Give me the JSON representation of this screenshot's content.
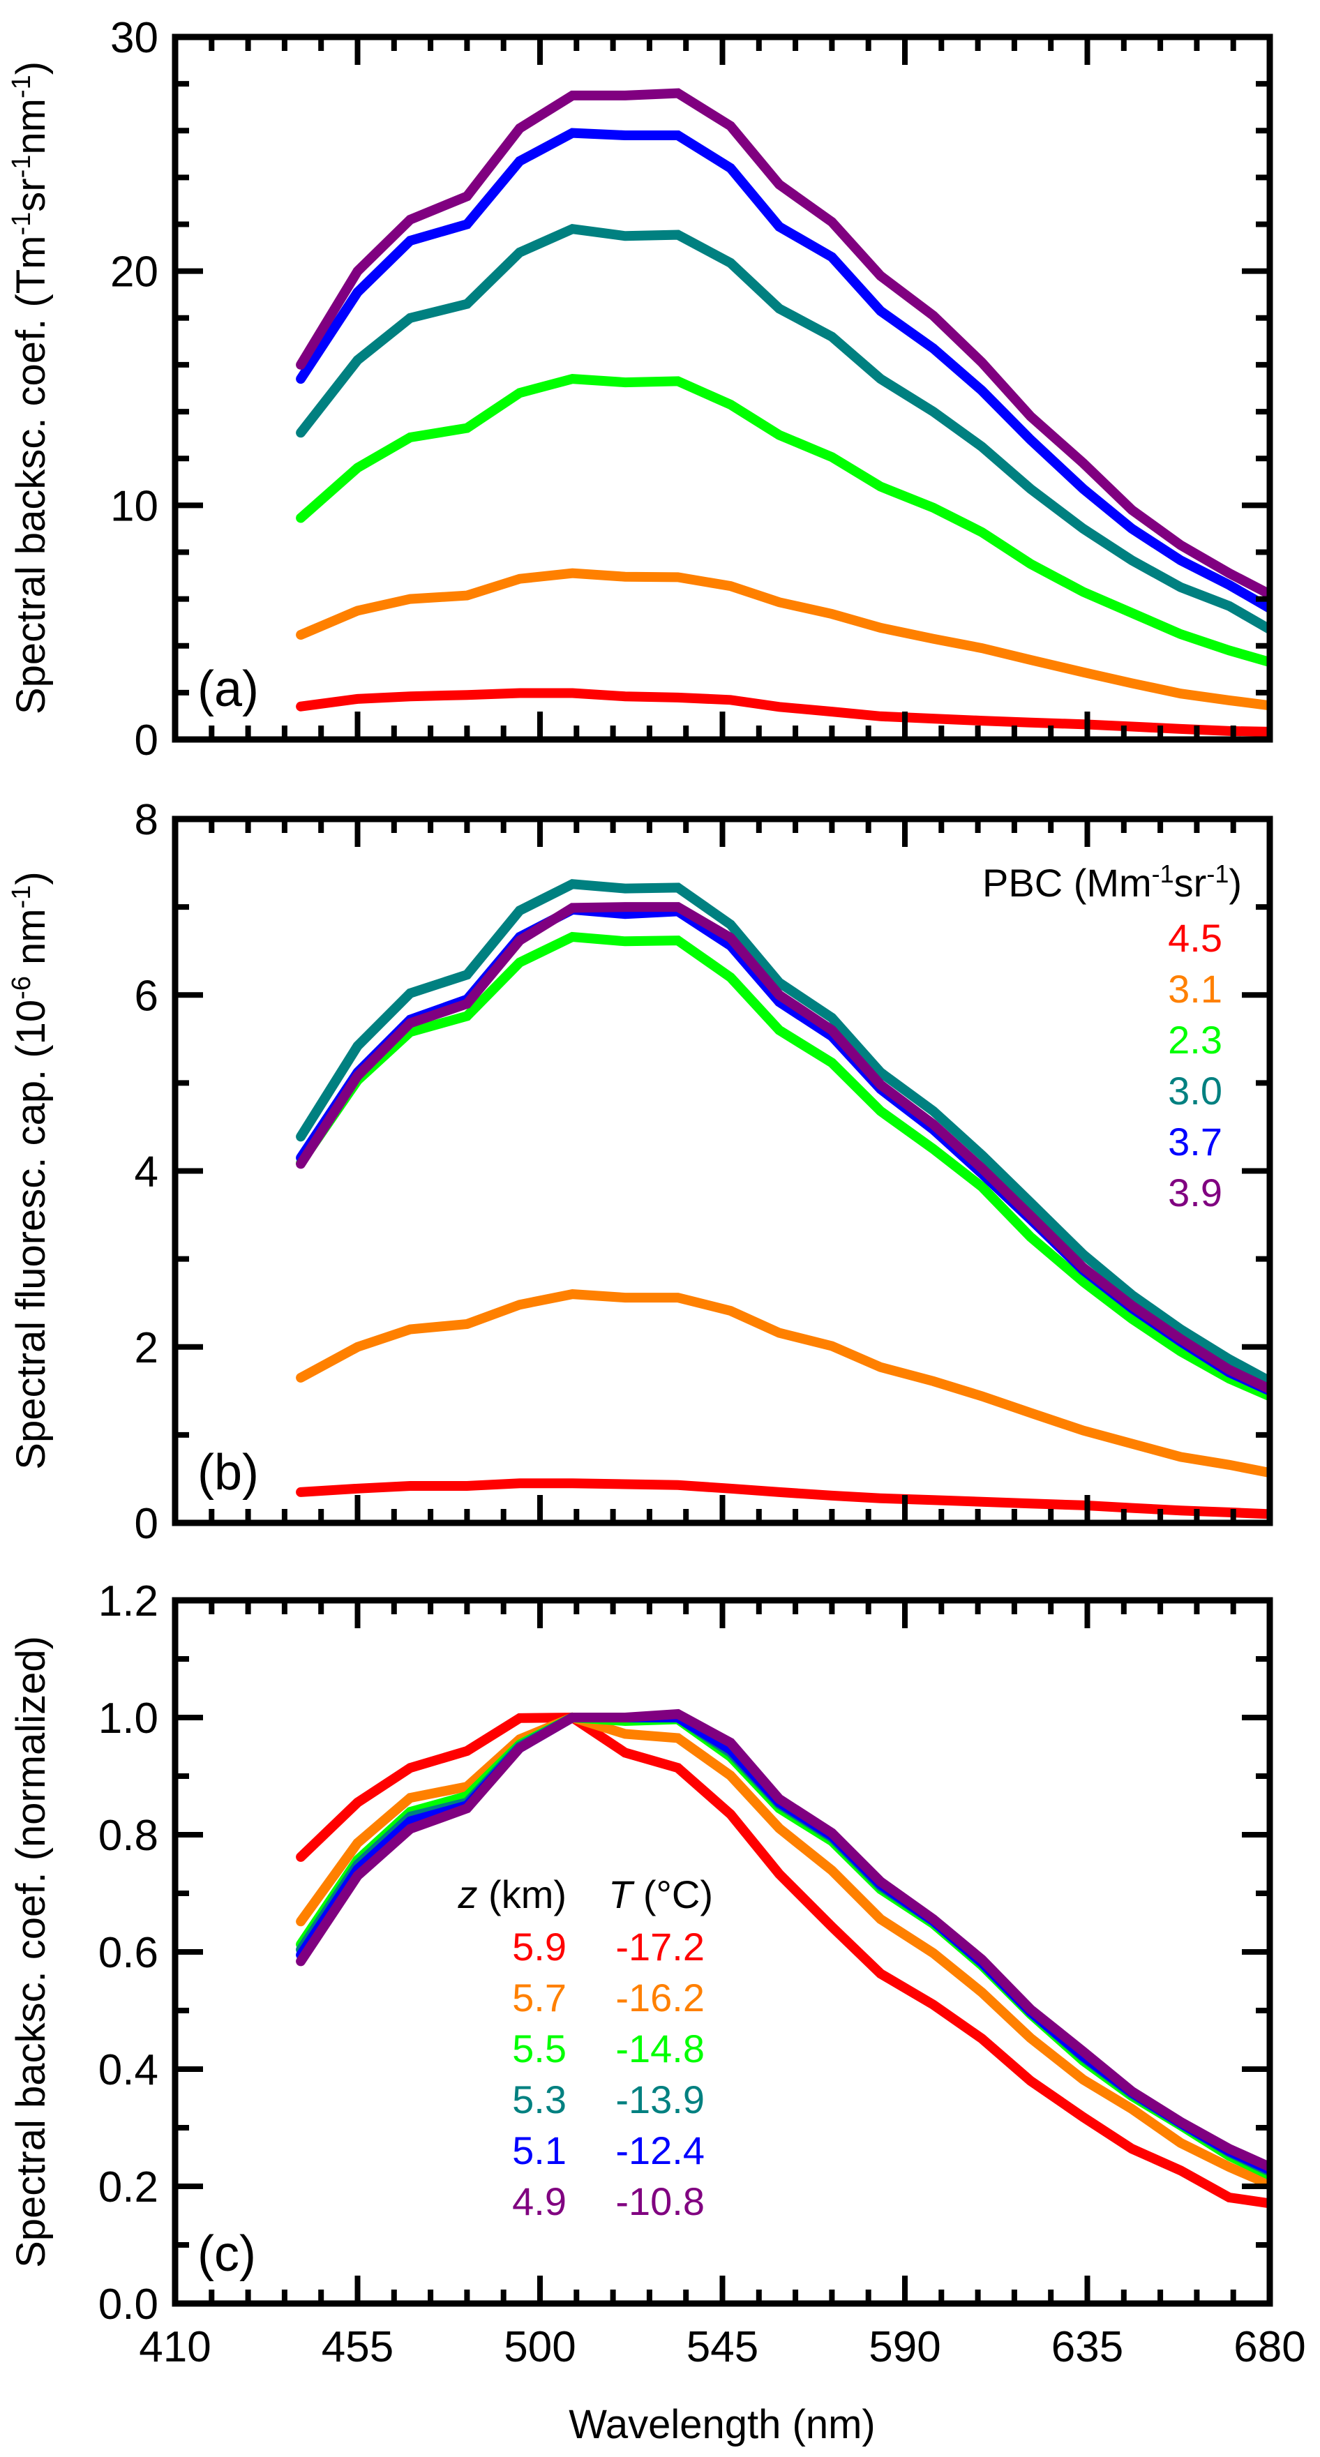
{
  "chart_data": [
    {
      "type": "line",
      "panel": "(a)",
      "ylabel": "Spectral backsc. coef. (Tm⁻¹sr⁻¹nm⁻¹)",
      "ylabel_parts": {
        "base": "Spectral backsc. coef. (Tm",
        "sup1": "-1",
        "mid1": "sr",
        "sup2": "-1",
        "mid2": "nm",
        "sup3": "-1",
        "end": ")"
      },
      "xlabel": "",
      "xlim": [
        410,
        680
      ],
      "ylim": [
        0,
        30
      ],
      "yticks": [
        0,
        10,
        20,
        30
      ],
      "ytick_labels": [
        "0",
        "10",
        "20",
        "30"
      ],
      "y_minor_step": 2,
      "x": [
        441,
        455,
        468,
        482,
        495,
        508,
        521,
        534,
        547,
        559,
        572,
        584,
        597,
        609,
        621,
        634,
        646,
        658,
        670,
        680
      ],
      "series": [
        {
          "name": "4.5",
          "color": "#ff0000",
          "values": [
            1.41,
            1.73,
            1.84,
            1.9,
            1.98,
            1.98,
            1.84,
            1.79,
            1.69,
            1.39,
            1.19,
            0.99,
            0.89,
            0.8,
            0.72,
            0.65,
            0.55,
            0.45,
            0.36,
            0.33
          ]
        },
        {
          "name": "3.1",
          "color": "#ff8000",
          "values": [
            4.47,
            5.5,
            6.0,
            6.15,
            6.86,
            7.1,
            6.95,
            6.93,
            6.55,
            5.86,
            5.36,
            4.77,
            4.3,
            3.9,
            3.4,
            2.87,
            2.4,
            1.96,
            1.67,
            1.45
          ]
        },
        {
          "name": "2.3",
          "color": "#00ff00",
          "values": [
            9.46,
            11.6,
            12.9,
            13.3,
            14.8,
            15.4,
            15.25,
            15.3,
            14.3,
            13.0,
            12.06,
            10.8,
            9.9,
            8.85,
            7.5,
            6.3,
            5.4,
            4.5,
            3.8,
            3.3
          ]
        },
        {
          "name": "3.0",
          "color": "#008080",
          "values": [
            13.1,
            16.2,
            18.0,
            18.6,
            20.8,
            21.8,
            21.5,
            21.55,
            20.35,
            18.4,
            17.2,
            15.4,
            14.0,
            12.5,
            10.7,
            9.0,
            7.65,
            6.5,
            5.7,
            4.7
          ]
        },
        {
          "name": "3.7",
          "color": "#0000ff",
          "values": [
            15.4,
            19.1,
            21.3,
            22.0,
            24.7,
            25.9,
            25.8,
            25.8,
            24.4,
            21.9,
            20.6,
            18.3,
            16.7,
            14.9,
            12.8,
            10.7,
            9.0,
            7.65,
            6.6,
            5.6
          ]
        },
        {
          "name": "3.9",
          "color": "#800080",
          "values": [
            16.0,
            20.0,
            22.2,
            23.2,
            26.1,
            27.5,
            27.5,
            27.6,
            26.2,
            23.7,
            22.1,
            19.8,
            18.1,
            16.1,
            13.8,
            11.8,
            9.8,
            8.3,
            7.1,
            6.2
          ]
        }
      ]
    },
    {
      "type": "line",
      "panel": "(b)",
      "ylabel": "Spectral fluoresc. cap. (10⁻⁶ nm⁻¹)",
      "ylabel_parts": {
        "base": "Spectral fluoresc. cap. (10",
        "sup1": "-6",
        "mid1": " nm",
        "sup2": "-1",
        "end": ")"
      },
      "xlabel": "",
      "xlim": [
        410,
        680
      ],
      "ylim": [
        0,
        8
      ],
      "yticks": [
        0,
        2,
        4,
        6,
        8
      ],
      "ytick_labels": [
        "0",
        "2",
        "4",
        "6",
        "8"
      ],
      "y_minor_step": 1,
      "legend": {
        "title": "PBC (Mm⁻¹sr⁻¹)",
        "title_parts": {
          "base": "PBC (Mm",
          "sup1": "-1",
          "mid1": "sr",
          "sup2": "-1",
          "end": ")"
        },
        "position": "top-right",
        "entries": [
          "4.5",
          "3.1",
          "2.3",
          "3.0",
          "3.7",
          "3.9"
        ]
      },
      "x": [
        441,
        455,
        468,
        482,
        495,
        508,
        521,
        534,
        547,
        559,
        572,
        584,
        597,
        609,
        621,
        634,
        646,
        658,
        670,
        680
      ],
      "series": [
        {
          "name": "4.5",
          "color": "#ff0000",
          "values": [
            0.35,
            0.39,
            0.42,
            0.42,
            0.45,
            0.45,
            0.44,
            0.43,
            0.39,
            0.35,
            0.31,
            0.28,
            0.26,
            0.24,
            0.22,
            0.2,
            0.17,
            0.14,
            0.12,
            0.1
          ]
        },
        {
          "name": "3.1",
          "color": "#ff8000",
          "values": [
            1.65,
            2.0,
            2.2,
            2.26,
            2.48,
            2.6,
            2.56,
            2.56,
            2.41,
            2.16,
            2.01,
            1.77,
            1.61,
            1.44,
            1.25,
            1.05,
            0.9,
            0.75,
            0.66,
            0.57
          ]
        },
        {
          "name": "2.3",
          "color": "#00ff00",
          "values": [
            4.09,
            5.03,
            5.58,
            5.76,
            6.37,
            6.66,
            6.61,
            6.62,
            6.2,
            5.6,
            5.23,
            4.68,
            4.25,
            3.82,
            3.25,
            2.74,
            2.32,
            1.95,
            1.64,
            1.44
          ]
        },
        {
          "name": "3.0",
          "color": "#008080",
          "values": [
            4.39,
            5.42,
            6.02,
            6.23,
            6.96,
            7.26,
            7.21,
            7.22,
            6.8,
            6.14,
            5.74,
            5.12,
            4.68,
            4.18,
            3.64,
            3.05,
            2.59,
            2.2,
            1.86,
            1.61
          ]
        },
        {
          "name": "3.7",
          "color": "#0000ff",
          "values": [
            4.15,
            5.12,
            5.72,
            5.95,
            6.66,
            6.97,
            6.92,
            6.95,
            6.56,
            5.92,
            5.53,
            4.93,
            4.47,
            3.97,
            3.45,
            2.87,
            2.44,
            2.06,
            1.71,
            1.5
          ]
        },
        {
          "name": "3.9",
          "color": "#800080",
          "values": [
            4.08,
            5.08,
            5.68,
            5.9,
            6.62,
            6.99,
            7.0,
            7.0,
            6.65,
            6.0,
            5.6,
            4.98,
            4.53,
            4.03,
            3.49,
            2.9,
            2.47,
            2.09,
            1.74,
            1.52
          ]
        }
      ]
    },
    {
      "type": "line",
      "panel": "(c)",
      "ylabel": "Spectral backsc. coef. (normalized)",
      "xlabel": "Wavelength (nm)",
      "xlim": [
        410,
        680
      ],
      "xticks": [
        410,
        455,
        500,
        545,
        590,
        635,
        680
      ],
      "xtick_labels": [
        "410",
        "455",
        "500",
        "545",
        "590",
        "635",
        "680"
      ],
      "x_minor_step": 9,
      "ylim": [
        0.0,
        1.2
      ],
      "yticks": [
        0.0,
        0.2,
        0.4,
        0.6,
        0.8,
        1.0,
        1.2
      ],
      "ytick_labels": [
        "0.0",
        "0.2",
        "0.4",
        "0.6",
        "0.8",
        "1.0",
        "1.2"
      ],
      "y_minor_step": 0.1,
      "legend": {
        "title_z": "z",
        "title_z_unit": " (km)",
        "title_t": "T",
        "title_t_unit": " (°C)",
        "position": "center-left",
        "entries": [
          {
            "z": "5.9",
            "t": "-17.2"
          },
          {
            "z": "5.7",
            "t": "-16.2"
          },
          {
            "z": "5.5",
            "t": "-14.8"
          },
          {
            "z": "5.3",
            "t": "-13.9"
          },
          {
            "z": "5.1",
            "t": "-12.4"
          },
          {
            "z": "4.9",
            "t": "-10.8"
          }
        ]
      },
      "x": [
        441,
        455,
        468,
        482,
        495,
        508,
        521,
        534,
        547,
        559,
        572,
        584,
        597,
        609,
        621,
        634,
        646,
        658,
        670,
        680
      ],
      "series": [
        {
          "name": "5.9 km / -17.2 °C",
          "color": "#ff0000",
          "values": [
            0.762,
            0.855,
            0.914,
            0.943,
            0.999,
            1.0,
            0.94,
            0.914,
            0.835,
            0.733,
            0.643,
            0.563,
            0.51,
            0.452,
            0.38,
            0.318,
            0.264,
            0.227,
            0.181,
            0.171
          ]
        },
        {
          "name": "5.7 km / -16.2 °C",
          "color": "#ff8000",
          "values": [
            0.652,
            0.786,
            0.863,
            0.882,
            0.963,
            1.0,
            0.972,
            0.965,
            0.901,
            0.811,
            0.739,
            0.656,
            0.598,
            0.531,
            0.453,
            0.382,
            0.332,
            0.274,
            0.233,
            0.203
          ]
        },
        {
          "name": "5.5 km / -14.8 °C",
          "color": "#00ff00",
          "values": [
            0.613,
            0.757,
            0.839,
            0.866,
            0.954,
            1.0,
            0.994,
            0.997,
            0.933,
            0.845,
            0.789,
            0.707,
            0.648,
            0.577,
            0.494,
            0.414,
            0.354,
            0.304,
            0.252,
            0.219
          ]
        },
        {
          "name": "5.3 km / -13.9 °C",
          "color": "#008080",
          "values": [
            0.604,
            0.749,
            0.831,
            0.855,
            0.951,
            1.0,
            1.0,
            1.0,
            0.94,
            0.852,
            0.795,
            0.712,
            0.652,
            0.581,
            0.497,
            0.42,
            0.358,
            0.307,
            0.258,
            0.225
          ]
        },
        {
          "name": "5.1 km / -12.4 °C",
          "color": "#0000ff",
          "values": [
            0.595,
            0.741,
            0.823,
            0.85,
            0.948,
            1.0,
            1.0,
            1.0,
            0.945,
            0.855,
            0.798,
            0.715,
            0.653,
            0.582,
            0.498,
            0.422,
            0.36,
            0.308,
            0.26,
            0.228
          ]
        },
        {
          "name": "4.9 km / -10.8 °C",
          "color": "#800080",
          "values": [
            0.584,
            0.73,
            0.81,
            0.845,
            0.948,
            1.0,
            1.0,
            1.006,
            0.957,
            0.861,
            0.803,
            0.72,
            0.656,
            0.587,
            0.502,
            0.43,
            0.362,
            0.31,
            0.264,
            0.233
          ]
        }
      ]
    }
  ]
}
